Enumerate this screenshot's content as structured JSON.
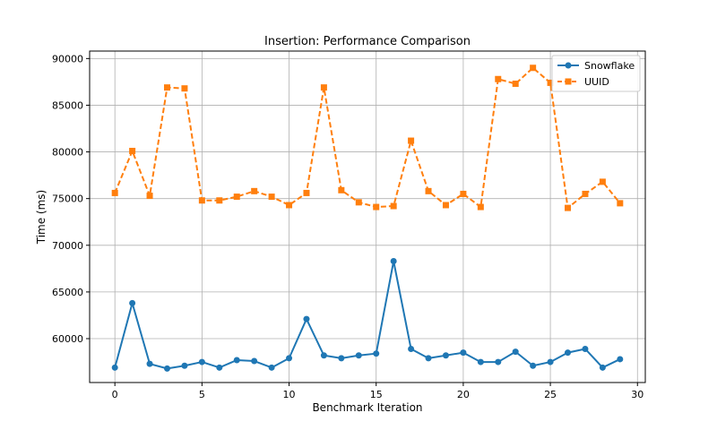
{
  "chart_data": {
    "type": "line",
    "title": "Insertion: Performance Comparison",
    "xlabel": "Benchmark Iteration",
    "ylabel": "Time (ms)",
    "xlim": [
      -1.45,
      30.45
    ],
    "ylim": [
      55300,
      90800
    ],
    "xticks": [
      0,
      5,
      10,
      15,
      20,
      25,
      30
    ],
    "yticks": [
      60000,
      65000,
      70000,
      75000,
      80000,
      85000,
      90000
    ],
    "grid": true,
    "legend_position": "top-right",
    "x": [
      0,
      1,
      2,
      3,
      4,
      5,
      6,
      7,
      8,
      9,
      10,
      11,
      12,
      13,
      14,
      15,
      16,
      17,
      18,
      19,
      20,
      21,
      22,
      23,
      24,
      25,
      26,
      27,
      28,
      29
    ],
    "series": [
      {
        "name": "Snowflake",
        "color": "#1f77b4",
        "marker": "circle",
        "linestyle": "solid",
        "values": [
          56900,
          63800,
          57300,
          56800,
          57100,
          57500,
          56900,
          57700,
          57600,
          56900,
          57900,
          62100,
          58200,
          57900,
          58200,
          58400,
          68300,
          58900,
          57900,
          58200,
          58500,
          57500,
          57500,
          58600,
          57100,
          57500,
          58500,
          58900,
          56900,
          57800
        ]
      },
      {
        "name": "UUID",
        "color": "#ff7f0e",
        "marker": "square",
        "linestyle": "dashed",
        "values": [
          75600,
          80100,
          75300,
          86900,
          86800,
          74800,
          74800,
          75200,
          75800,
          75200,
          74300,
          75600,
          86900,
          75900,
          74600,
          74100,
          74200,
          81200,
          75800,
          74300,
          75500,
          74100,
          87800,
          87300,
          89000,
          87400,
          74000,
          75500,
          76800,
          74500
        ]
      }
    ]
  }
}
